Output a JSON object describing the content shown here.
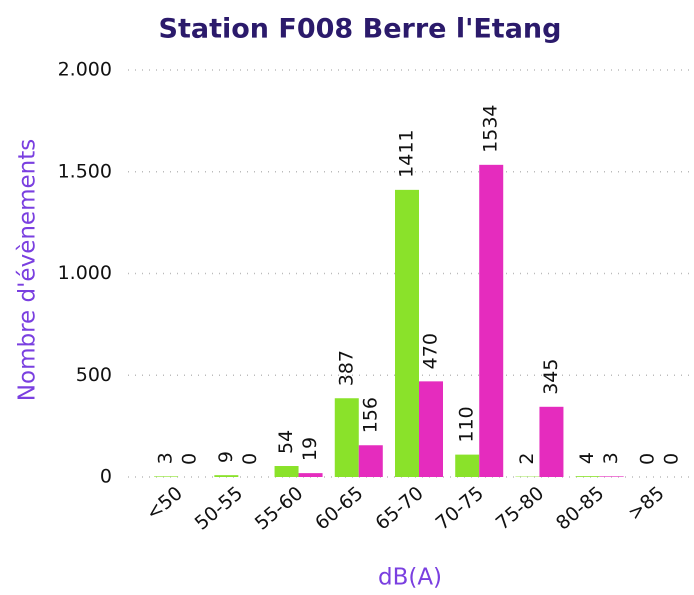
{
  "chart_data": {
    "type": "bar",
    "title": "Station F008 Berre l'Etang",
    "xlabel": "dB(A)",
    "ylabel": "Nombre d'évènements",
    "categories": [
      "<50",
      "50-55",
      "55-60",
      "60-65",
      "65-70",
      "70-75",
      "75-80",
      "80-85",
      ">85"
    ],
    "series": [
      {
        "color": "#8ae22a",
        "values": [
          3,
          9,
          54,
          387,
          1411,
          110,
          2,
          4,
          0
        ]
      },
      {
        "color": "#e52cbe",
        "values": [
          0,
          0,
          19,
          156,
          470,
          1534,
          345,
          3,
          0
        ]
      }
    ],
    "ylim": [
      0,
      2000
    ],
    "yticks": [
      0,
      500,
      {
        "value": 1000,
        "label": "1.000"
      },
      {
        "value": 1500,
        "label": "1.500"
      },
      {
        "value": 2000,
        "label": "2.000"
      }
    ],
    "grid": true
  }
}
